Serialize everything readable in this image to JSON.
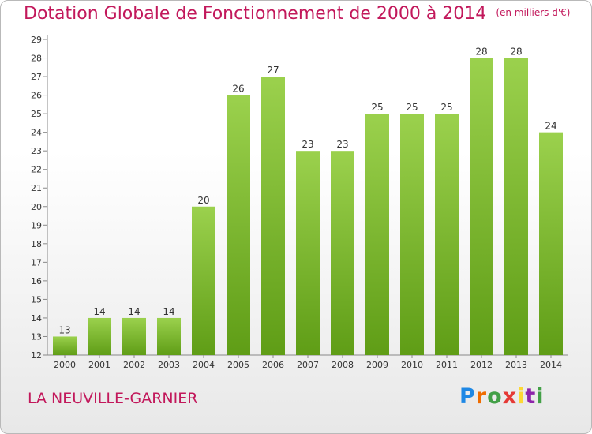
{
  "title": "Dotation Globale de Fonctionnement de 2000 à 2014",
  "unit": "(en milliers d'€)",
  "commune": "LA NEUVILLE-GARNIER",
  "logo_text": "Proxiti",
  "colors": {
    "bar_top": "#9bd14d",
    "bar_bottom": "#5f9d16",
    "title": "#c2185b"
  },
  "chart_data": {
    "type": "bar",
    "title": "Dotation Globale de Fonctionnement de 2000 à 2014",
    "categories": [
      "2000",
      "2001",
      "2002",
      "2003",
      "2004",
      "2005",
      "2006",
      "2007",
      "2008",
      "2009",
      "2010",
      "2011",
      "2012",
      "2013",
      "2014"
    ],
    "values": [
      13,
      14,
      14,
      14,
      20,
      26,
      27,
      23,
      23,
      25,
      25,
      25,
      28,
      28,
      24
    ],
    "ylim": [
      12,
      29
    ],
    "yticks": [
      12,
      13,
      14,
      15,
      16,
      17,
      18,
      19,
      20,
      21,
      22,
      23,
      24,
      25,
      26,
      27,
      28,
      29
    ],
    "xlabel": "",
    "ylabel": "",
    "grid": false,
    "data_labels": true
  }
}
